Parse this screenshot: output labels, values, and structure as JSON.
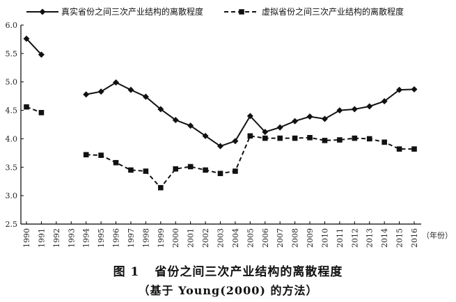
{
  "chart_data": {
    "type": "line",
    "x": [
      "1990",
      "1991",
      "1992",
      "1993",
      "1994",
      "1995",
      "1996",
      "1997",
      "1998",
      "1999",
      "2000",
      "2001",
      "2002",
      "2003",
      "2004",
      "2005",
      "2006",
      "2007",
      "2008",
      "2009",
      "2010",
      "2011",
      "2012",
      "2013",
      "2014",
      "2015",
      "2016"
    ],
    "x_unit": "（年份）",
    "ylim": [
      2.5,
      6.0
    ],
    "yticks": [
      "2.5",
      "3.0",
      "3.5",
      "4.0",
      "4.5",
      "5.0",
      "5.5",
      "6.0"
    ],
    "grid": false,
    "legend_position": "top",
    "series": [
      {
        "name": "真实省份之间三次产业结构的离散程度",
        "marker": "diamond",
        "line_style": "solid",
        "values": [
          5.76,
          5.48,
          null,
          null,
          4.78,
          4.83,
          4.99,
          4.86,
          4.74,
          4.52,
          4.33,
          4.23,
          4.05,
          3.87,
          3.96,
          4.4,
          4.12,
          4.2,
          4.31,
          4.39,
          4.35,
          4.5,
          4.52,
          4.57,
          4.66,
          4.86,
          4.87
        ]
      },
      {
        "name": "虚拟省份之间三次产业结构的离散程度",
        "marker": "square",
        "line_style": "dashed",
        "values": [
          4.56,
          4.46,
          null,
          null,
          3.72,
          3.71,
          3.58,
          3.45,
          3.43,
          3.14,
          3.47,
          3.51,
          3.45,
          3.39,
          3.43,
          4.05,
          4.01,
          4.01,
          4.01,
          4.02,
          3.97,
          3.98,
          4.01,
          4.0,
          3.94,
          3.82,
          3.82
        ]
      }
    ]
  },
  "caption": {
    "figure_number": "图 1",
    "title": "省份之间三次产业结构的离散程度",
    "subtitle": "（基于 Young(2000) 的方法）"
  },
  "colors": {
    "axis": "#000000",
    "series": "#111111"
  }
}
